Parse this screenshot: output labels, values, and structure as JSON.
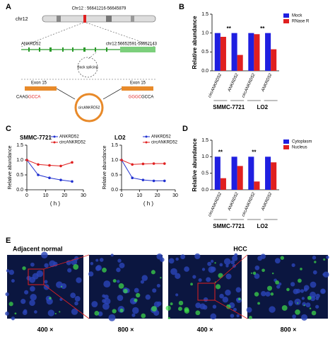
{
  "panel_a": {
    "label": "A",
    "chromosome": "chr12",
    "locus": "Chr12 : 56641216-56645879",
    "gene": "ANKRD52",
    "exon_region": "chr12:56652591-56652143",
    "back_splicing": "Back splicing",
    "exon_left": "Exon 15",
    "exon_right": "Exon 15",
    "junction_left_a": "CAAG",
    "junction_left_b": "GCCA",
    "junction_right_a": "GGGC",
    "junction_right_b": "GCCA",
    "circ": "circANKRD52"
  },
  "panel_e": {
    "label": "E",
    "left_title": "Adjacent normal",
    "right_title": "HCC",
    "magnifications": [
      "400 ×",
      "800 ×",
      "400 ×",
      "800 ×"
    ]
  },
  "chart_data": [
    {
      "type": "bar",
      "panel_label": "B",
      "y_label": "Relative abundance",
      "categories": [
        "circANKRD52",
        "ANKRD52",
        "circANKRD52",
        "ANKRD52"
      ],
      "group_labels": [
        "SMMC-7721",
        "LO2"
      ],
      "significance": [
        null,
        "**",
        null,
        "**"
      ],
      "series": [
        {
          "name": "Mock",
          "color": "#1f1fe0",
          "values": [
            1.0,
            1.0,
            1.0,
            1.0
          ]
        },
        {
          "name": "RNase R",
          "color": "#e02020",
          "values": [
            0.9,
            0.42,
            0.97,
            0.57
          ]
        }
      ],
      "ylim": [
        0,
        1.5
      ],
      "yticks": [
        {
          "value": 0,
          "label": "0.0"
        },
        {
          "value": 0.5,
          "label": "0.5"
        },
        {
          "value": 1,
          "label": "1.0"
        },
        {
          "value": 1.5,
          "label": "1.5"
        }
      ]
    },
    {
      "type": "line",
      "panel_label": "C",
      "title": "SMMC-7721",
      "y_label": "Relative abundance",
      "x_label": "( h )",
      "x": [
        0,
        6,
        12,
        18,
        24
      ],
      "series": [
        {
          "name": "ANKRD52",
          "color": "#2030d0",
          "values": [
            1.0,
            0.5,
            0.4,
            0.33,
            0.28
          ]
        },
        {
          "name": "circANKRD52",
          "color": "#e02020",
          "values": [
            1.0,
            0.85,
            0.82,
            0.8,
            0.92
          ]
        }
      ],
      "xlim": [
        0,
        30
      ],
      "xticks": [
        0,
        10,
        20,
        30
      ],
      "ylim": [
        0,
        1.5
      ],
      "yticks": [
        {
          "value": 0,
          "label": "0.0"
        },
        {
          "value": 0.5,
          "label": "0.5"
        },
        {
          "value": 1,
          "label": "1.0"
        },
        {
          "value": 1.5,
          "label": "1.5"
        }
      ]
    },
    {
      "type": "line",
      "title": "LO2",
      "y_label": "Relative abundance",
      "x_label": "( h )",
      "x": [
        0,
        6,
        12,
        18,
        24
      ],
      "series": [
        {
          "name": "ANKRD52",
          "color": "#2030d0",
          "values": [
            1.0,
            0.4,
            0.33,
            0.3,
            0.3
          ]
        },
        {
          "name": "circANKRD52",
          "color": "#e02020",
          "values": [
            1.0,
            0.85,
            0.87,
            0.88,
            0.88
          ]
        }
      ],
      "xlim": [
        0,
        30
      ],
      "xticks": [
        0,
        10,
        20,
        30
      ],
      "ylim": [
        0,
        1.5
      ],
      "yticks": [
        {
          "value": 0,
          "label": "0.0"
        },
        {
          "value": 0.5,
          "label": "0.5"
        },
        {
          "value": 1,
          "label": "1.0"
        },
        {
          "value": 1.5,
          "label": "1.5"
        }
      ]
    },
    {
      "type": "bar",
      "panel_label": "D",
      "y_label": "Relative abundance",
      "categories": [
        "circANKRD52",
        "ANKRD52",
        "circANKRD52",
        "ANKRD52"
      ],
      "group_labels": [
        "SMMC-7721",
        "LO2"
      ],
      "significance": [
        "**",
        null,
        "**",
        null
      ],
      "series": [
        {
          "name": "Cytoplasm",
          "color": "#1f1fe0",
          "values": [
            1.0,
            1.0,
            1.0,
            1.0
          ]
        },
        {
          "name": "Nucleus",
          "color": "#e02020",
          "values": [
            0.35,
            0.72,
            0.25,
            0.83
          ]
        }
      ],
      "ylim": [
        0,
        1.5
      ],
      "yticks": [
        {
          "value": 0,
          "label": "0.0"
        },
        {
          "value": 0.5,
          "label": "0.5"
        },
        {
          "value": 1,
          "label": "1.0"
        },
        {
          "value": 1.5,
          "label": "1.5"
        }
      ]
    }
  ]
}
